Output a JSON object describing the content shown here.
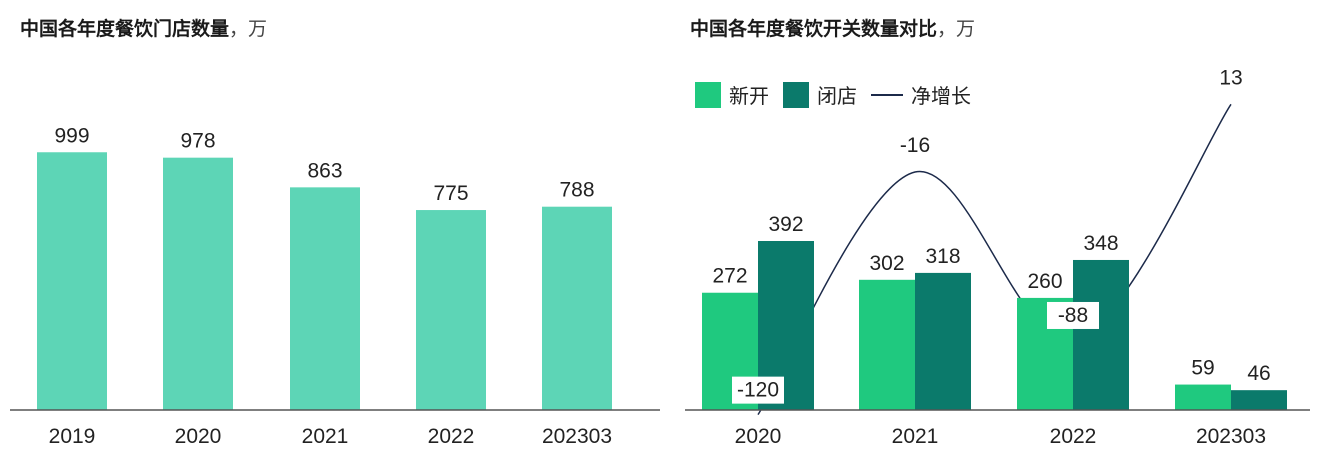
{
  "chart_data": [
    {
      "type": "bar",
      "title": "中国各年度餐饮门店数量",
      "unit": "，万",
      "categories": [
        "2019",
        "2020",
        "2021",
        "2022",
        "202303"
      ],
      "values": [
        999,
        978,
        863,
        775,
        788
      ],
      "ylim": [
        0,
        1000
      ],
      "grid": false,
      "color": "#5dd5b6"
    },
    {
      "type": "bar",
      "title": "中国各年度餐饮开关数量对比",
      "unit": "，万",
      "categories": [
        "2020",
        "2021",
        "2022",
        "202303"
      ],
      "series": [
        {
          "name": "新开",
          "type": "bar",
          "values": [
            272,
            302,
            260,
            59
          ],
          "color": "#1fc97f"
        },
        {
          "name": "闭店",
          "type": "bar",
          "values": [
            392,
            318,
            348,
            46
          ],
          "color": "#0b7a6b"
        },
        {
          "name": "净增长",
          "type": "line",
          "values": [
            -120,
            -16,
            -88,
            13
          ],
          "color": "#1c2a4a"
        }
      ],
      "legend_position": "top-left",
      "grid": false
    }
  ]
}
